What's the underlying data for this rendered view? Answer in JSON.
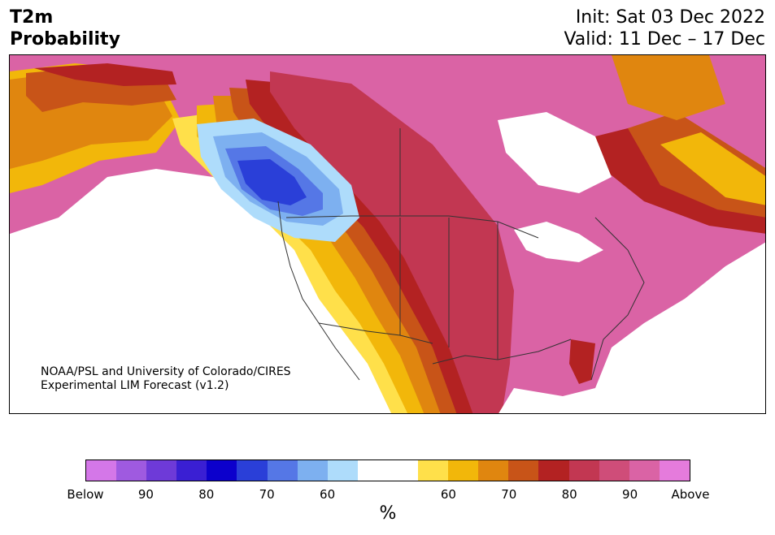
{
  "header": {
    "title_line1": "T2m",
    "title_line2": "Probability",
    "init_label": "Init: Sat 03 Dec 2022",
    "valid_label": "Valid: 11 Dec – 17 Dec"
  },
  "credit": {
    "line1": "NOAA/PSL and University of Colorado/CIRES",
    "line2": "Experimental LIM Forecast (v1.2)"
  },
  "colorbar": {
    "unit": "%",
    "colors": [
      "#d477e8",
      "#9f5ae0",
      "#6e3ad8",
      "#3a1fd3",
      "#0c00cc",
      "#2a3fd8",
      "#5577e6",
      "#7db0f0",
      "#aedcfb",
      "#ffffff",
      "#ffffff",
      "#ffe04a",
      "#f2b70a",
      "#e0860f",
      "#c85418",
      "#b32222",
      "#c23752",
      "#cf4d79",
      "#da63a5",
      "#e57bdc"
    ],
    "ticks": [
      "Below",
      "90",
      "80",
      "70",
      "60",
      "60",
      "70",
      "80",
      "90",
      "Above"
    ]
  },
  "map": {
    "region": "North America",
    "palette": {
      "above_far": "#da63a5",
      "above_90": "#cf4d79",
      "above_80": "#c23752",
      "above_75": "#b32222",
      "above_70": "#c85418",
      "above_65": "#e0860f",
      "above_60": "#f2b70a",
      "above_55": "#ffe04a",
      "near_normal": "#ffffff",
      "below_55": "#aedcfb",
      "below_60": "#7db0f0",
      "below_65": "#5577e6",
      "below_70": "#2a3fd8"
    }
  }
}
